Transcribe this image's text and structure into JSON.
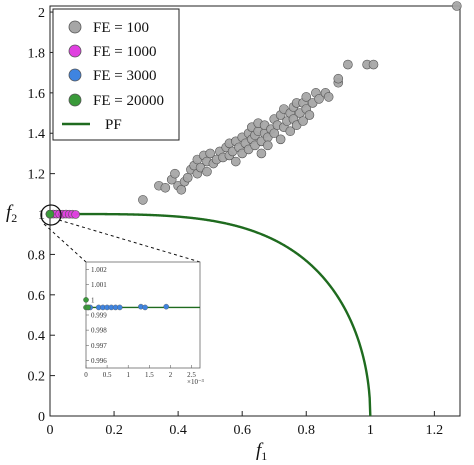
{
  "chart_data": {
    "type": "scatter",
    "xlabel": "f",
    "xlabel_sub": "1",
    "ylabel": "f",
    "ylabel_sub": "2",
    "xlim": [
      0,
      1.28
    ],
    "ylim": [
      0,
      2.03
    ],
    "x_ticks": [
      "0",
      "0.2",
      "0.4",
      "0.6",
      "0.8",
      "1",
      "1.2"
    ],
    "y_ticks": [
      "0",
      "0.2",
      "0.4",
      "0.6",
      "0.8",
      "1",
      "1.2",
      "1.4",
      "1.6",
      "1.8",
      "2"
    ],
    "legend_position": "top-left",
    "series": [
      {
        "name": "FE = 100",
        "color": "#a6a6a6",
        "points": [
          [
            0.29,
            1.07
          ],
          [
            0.34,
            1.14
          ],
          [
            0.36,
            1.13
          ],
          [
            0.38,
            1.17
          ],
          [
            0.39,
            1.2
          ],
          [
            0.4,
            1.14
          ],
          [
            0.41,
            1.12
          ],
          [
            0.42,
            1.16
          ],
          [
            0.43,
            1.18
          ],
          [
            0.44,
            1.22
          ],
          [
            0.45,
            1.24
          ],
          [
            0.46,
            1.2
          ],
          [
            0.46,
            1.27
          ],
          [
            0.47,
            1.23
          ],
          [
            0.48,
            1.29
          ],
          [
            0.49,
            1.26
          ],
          [
            0.49,
            1.21
          ],
          [
            0.5,
            1.3
          ],
          [
            0.51,
            1.25
          ],
          [
            0.52,
            1.27
          ],
          [
            0.53,
            1.31
          ],
          [
            0.54,
            1.28
          ],
          [
            0.55,
            1.33
          ],
          [
            0.56,
            1.29
          ],
          [
            0.56,
            1.35
          ],
          [
            0.57,
            1.31
          ],
          [
            0.58,
            1.36
          ],
          [
            0.58,
            1.26
          ],
          [
            0.59,
            1.33
          ],
          [
            0.6,
            1.38
          ],
          [
            0.6,
            1.3
          ],
          [
            0.61,
            1.35
          ],
          [
            0.62,
            1.4
          ],
          [
            0.62,
            1.32
          ],
          [
            0.63,
            1.37
          ],
          [
            0.63,
            1.43
          ],
          [
            0.64,
            1.34
          ],
          [
            0.64,
            1.39
          ],
          [
            0.65,
            1.41
          ],
          [
            0.65,
            1.45
          ],
          [
            0.66,
            1.36
          ],
          [
            0.66,
            1.3
          ],
          [
            0.67,
            1.4
          ],
          [
            0.67,
            1.44
          ],
          [
            0.68,
            1.38
          ],
          [
            0.68,
            1.34
          ],
          [
            0.69,
            1.42
          ],
          [
            0.7,
            1.47
          ],
          [
            0.7,
            1.4
          ],
          [
            0.71,
            1.44
          ],
          [
            0.72,
            1.37
          ],
          [
            0.72,
            1.49
          ],
          [
            0.73,
            1.43
          ],
          [
            0.73,
            1.52
          ],
          [
            0.74,
            1.46
          ],
          [
            0.75,
            1.41
          ],
          [
            0.75,
            1.5
          ],
          [
            0.76,
            1.47
          ],
          [
            0.76,
            1.53
          ],
          [
            0.77,
            1.44
          ],
          [
            0.77,
            1.55
          ],
          [
            0.78,
            1.5
          ],
          [
            0.79,
            1.46
          ],
          [
            0.79,
            1.55
          ],
          [
            0.8,
            1.52
          ],
          [
            0.8,
            1.58
          ],
          [
            0.81,
            1.49
          ],
          [
            0.82,
            1.55
          ],
          [
            0.83,
            1.6
          ],
          [
            0.84,
            1.57
          ],
          [
            0.86,
            1.6
          ],
          [
            0.87,
            1.58
          ],
          [
            0.9,
            1.65
          ],
          [
            0.9,
            1.67
          ],
          [
            0.93,
            1.74
          ],
          [
            0.99,
            1.74
          ],
          [
            1.01,
            1.74
          ],
          [
            1.27,
            2.03
          ]
        ]
      },
      {
        "name": "FE = 1000",
        "color": "#e040e0",
        "points": [
          [
            0.0,
            1.0
          ],
          [
            0.01,
            1.0
          ],
          [
            0.02,
            1.0
          ],
          [
            0.03,
            1.0
          ],
          [
            0.04,
            0.999
          ],
          [
            0.05,
            1.0
          ],
          [
            0.06,
            0.999
          ],
          [
            0.07,
            0.999
          ],
          [
            0.08,
            0.998
          ]
        ]
      },
      {
        "name": "FE = 3000",
        "color": "#3f84e0",
        "points": [
          [
            5e-05,
            0.9995
          ],
          [
            0.0001,
            0.9995
          ],
          [
            0.0003,
            0.9995
          ],
          [
            0.0004,
            0.9995
          ],
          [
            0.0005,
            0.9995
          ],
          [
            0.0006,
            0.9995
          ],
          [
            0.0007,
            0.9995
          ],
          [
            0.0008,
            0.9995
          ],
          [
            0.0013,
            0.99955
          ],
          [
            0.0014,
            0.9995
          ],
          [
            0.0019,
            0.99955
          ]
        ]
      },
      {
        "name": "FE = 20000",
        "color": "#3a9a3a",
        "points": [
          [
            0.0,
            1.0
          ],
          [
            0.0,
            0.9995
          ],
          [
            5e-05,
            0.9995
          ]
        ]
      },
      {
        "name": "PF",
        "color": "#1f6b1f",
        "type": "line",
        "function": "f2 = sqrt(1 - f1^4)"
      }
    ],
    "inset": {
      "xlim": [
        0,
        0.0027
      ],
      "ylim": [
        0.9955,
        1.0025
      ],
      "x_ticks": [
        "0",
        "0.5",
        "1",
        "1.5",
        "2",
        "2.5"
      ],
      "y_ticks": [
        "0.996",
        "0.997",
        "0.998",
        "0.999",
        "1",
        "1.001",
        "1.002"
      ],
      "x_multiplier": "×10⁻³",
      "pf_level": 0.9995
    }
  }
}
